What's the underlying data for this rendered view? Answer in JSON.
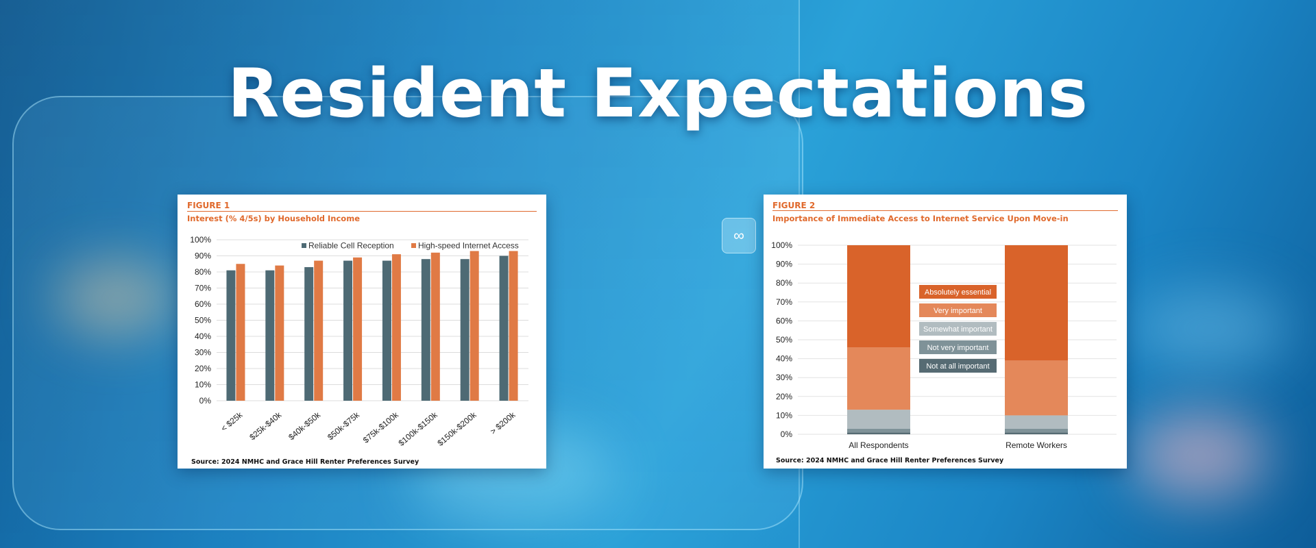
{
  "page": {
    "title": "Resident Expectations"
  },
  "figure1": {
    "label": "FIGURE 1",
    "title": "Interest (% 4/5s) by Household Income",
    "source": "Source: 2024 NMHC and Grace Hill Renter Preferences Survey"
  },
  "figure2": {
    "label": "FIGURE 2",
    "title": "Importance of Immediate Access to Internet Service Upon Move-in",
    "source": "Source: 2024 NMHC and Grace Hill Renter Preferences Survey"
  },
  "chart_data": [
    {
      "type": "bar",
      "title": "Interest (% 4/5s) by Household Income",
      "categories": [
        "< $25k",
        "$25k-$40k",
        "$40k-$50k",
        "$50k-$75k",
        "$75k-$100k",
        "$100k-$150k",
        "$150k-$200k",
        "> $200k"
      ],
      "series": [
        {
          "name": "Reliable Cell Reception",
          "color": "#4e6a74",
          "values": [
            81,
            81,
            83,
            87,
            87,
            88,
            88,
            90
          ]
        },
        {
          "name": "High-speed Internet Access",
          "color": "#e07a45",
          "values": [
            85,
            84,
            87,
            89,
            91,
            92,
            93,
            93
          ]
        }
      ],
      "ylim": [
        0,
        100
      ],
      "yticks": [
        "0%",
        "10%",
        "20%",
        "30%",
        "40%",
        "50%",
        "60%",
        "70%",
        "80%",
        "90%",
        "100%"
      ],
      "legend_position": "top-right",
      "grid": true
    },
    {
      "type": "bar",
      "stacked": true,
      "title": "Importance of Immediate Access to Internet Service Upon Move-in",
      "categories": [
        "All Respondents",
        "Remote Workers"
      ],
      "series": [
        {
          "name": "Not at all important",
          "color": "#566b73",
          "values": [
            1,
            1
          ]
        },
        {
          "name": "Not very important",
          "color": "#7f9298",
          "values": [
            2,
            2
          ]
        },
        {
          "name": "Somewhat important",
          "color": "#b1bcc0",
          "values": [
            10,
            7
          ]
        },
        {
          "name": "Very important",
          "color": "#e4885a",
          "values": [
            33,
            29
          ]
        },
        {
          "name": "Absolutely essential",
          "color": "#d9632a",
          "values": [
            54,
            61
          ]
        }
      ],
      "ylim": [
        0,
        100
      ],
      "yticks": [
        "0%",
        "10%",
        "20%",
        "30%",
        "40%",
        "50%",
        "60%",
        "70%",
        "80%",
        "90%",
        "100%"
      ],
      "legend_order": [
        "Absolutely essential",
        "Very important",
        "Somewhat important",
        "Not very important",
        "Not at all important"
      ],
      "grid": true
    }
  ]
}
